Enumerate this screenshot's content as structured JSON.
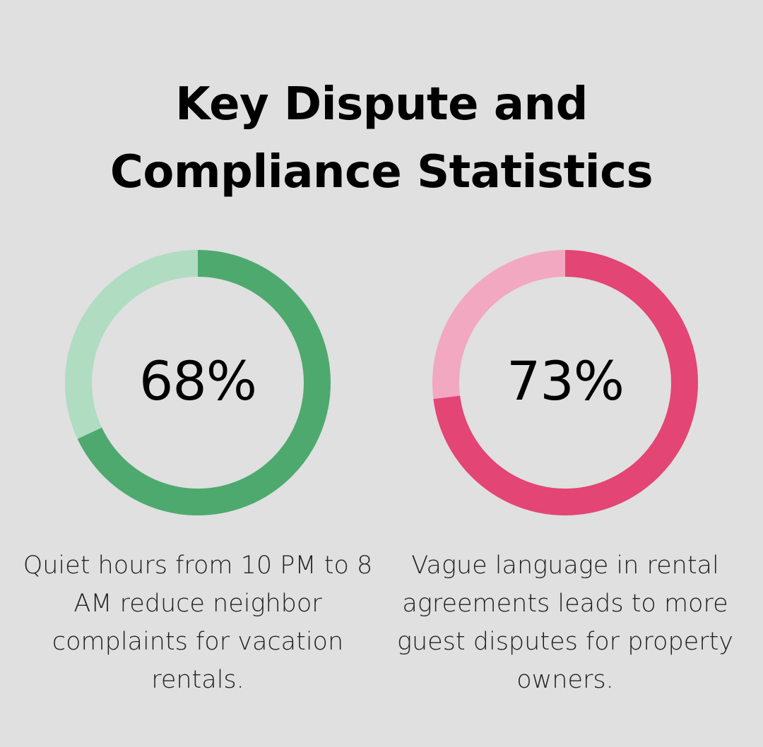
{
  "title": {
    "line1": "Key Dispute and",
    "line2": "Compliance Statistics"
  },
  "chart_data": [
    {
      "type": "pie",
      "variant": "donut",
      "value": 68,
      "label": "68%",
      "caption": "Quiet hours from 10 PM to 8 AM reduce neighbor complaints for vacation rentals.",
      "colors": {
        "filled": "#4ea96f",
        "remainder": "#b0dcc1"
      }
    },
    {
      "type": "pie",
      "variant": "donut",
      "value": 73,
      "label": "73%",
      "caption": "Vague language in rental agreements leads to more guest disputes for property owners.",
      "colors": {
        "filled": "#e34575",
        "remainder": "#f2a8c0"
      }
    }
  ]
}
